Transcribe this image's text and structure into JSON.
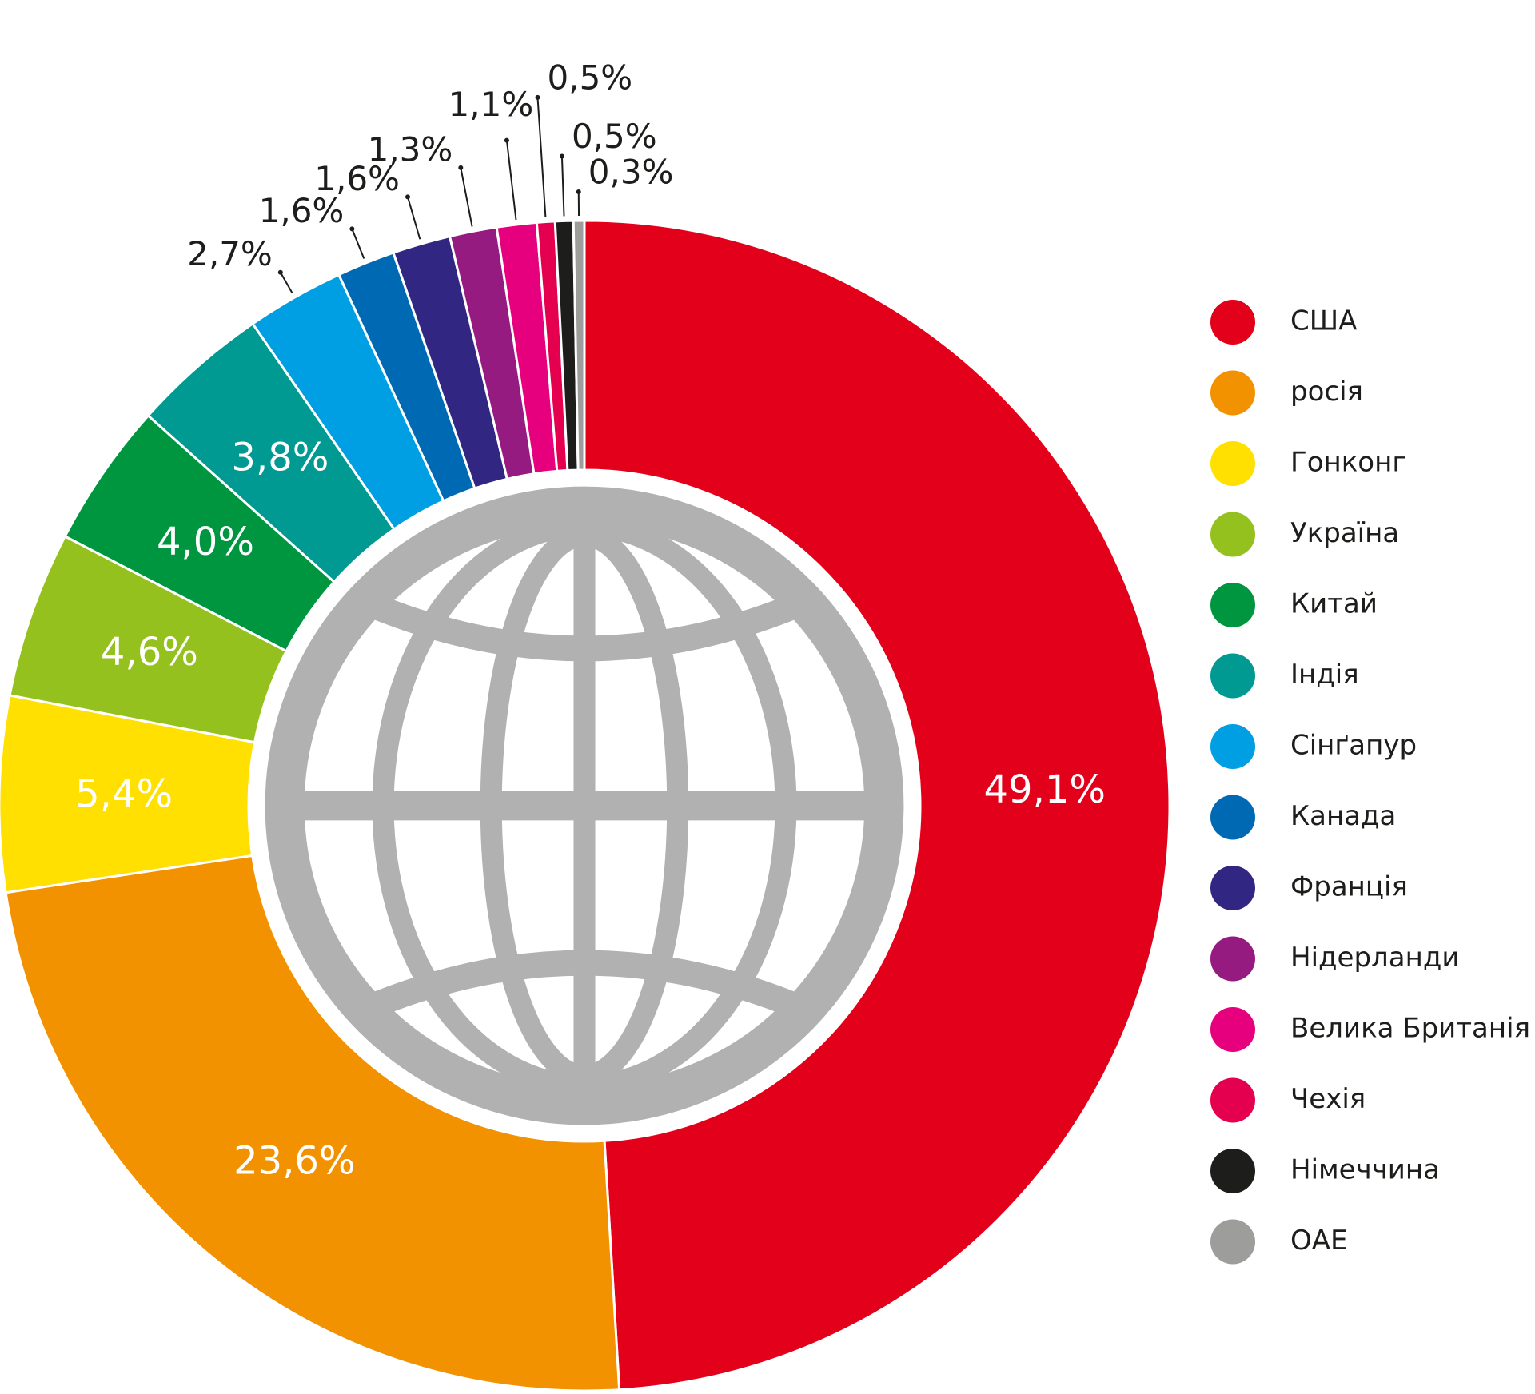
{
  "chart_data": {
    "type": "donut",
    "categories": [
      "США",
      "росія",
      "Гонконг",
      "Україна",
      "Китай",
      "Індія",
      "Сінґапур",
      "Канада",
      "Франція",
      "Нідерланди",
      "Велика Британія",
      "Чехія",
      "Німеччина",
      "ОАЕ"
    ],
    "values": [
      49.1,
      23.6,
      5.4,
      4.6,
      4.0,
      3.8,
      2.7,
      1.6,
      1.6,
      1.3,
      1.1,
      0.5,
      0.5,
      0.3
    ],
    "value_labels": [
      "49,1%",
      "23,6%",
      "5,4%",
      "4,6%",
      "4,0%",
      "3,8%",
      "2,7%",
      "1,6%",
      "1,6%",
      "1,3%",
      "1,1%",
      "0,5%",
      "0,5%",
      "0,3%"
    ],
    "colors": [
      "#e2001a",
      "#f39200",
      "#ffe000",
      "#95c11f",
      "#009640",
      "#009a93",
      "#009fe3",
      "#0069b4",
      "#312783",
      "#951b81",
      "#e6007e",
      "#e5004f",
      "#1d1d1b",
      "#9d9d9c"
    ],
    "legend": "right"
  }
}
